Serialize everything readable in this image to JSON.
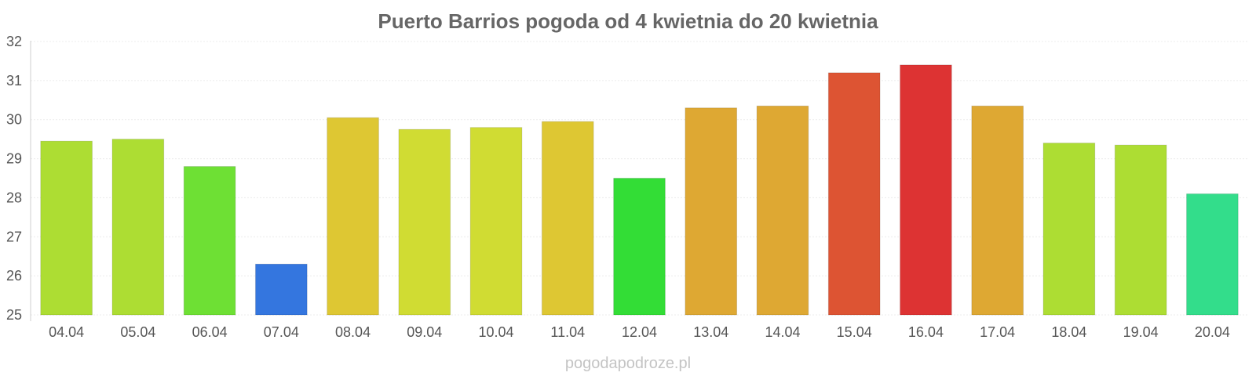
{
  "chart_data": {
    "type": "bar",
    "title": "Puerto Barrios pogoda od 4 kwietnia do 20 kwietnia",
    "xlabel": "",
    "ylabel": "",
    "ylim": [
      25,
      32
    ],
    "yticks": [
      "25",
      "26",
      "27",
      "28",
      "29",
      "30",
      "31",
      "32"
    ],
    "grid": true,
    "legend": "none",
    "categories": [
      "04.04",
      "05.04",
      "06.04",
      "07.04",
      "08.04",
      "09.04",
      "10.04",
      "11.04",
      "12.04",
      "13.04",
      "14.04",
      "15.04",
      "16.04",
      "17.04",
      "18.04",
      "19.04",
      "20.04"
    ],
    "values": [
      29.45,
      29.5,
      28.8,
      26.3,
      30.05,
      29.75,
      29.8,
      29.95,
      28.5,
      30.3,
      30.35,
      31.2,
      31.4,
      30.35,
      29.4,
      29.35,
      28.1
    ],
    "colors": [
      "#addd33",
      "#addd33",
      "#6ee034",
      "#3476df",
      "#dec733",
      "#d0dc33",
      "#d0dc33",
      "#dec733",
      "#33dd36",
      "#dea833",
      "#dea833",
      "#dd5433",
      "#dd3333",
      "#dea833",
      "#addd33",
      "#addd33",
      "#33dd8b"
    ]
  },
  "watermark": "pogodapodroze.pl"
}
